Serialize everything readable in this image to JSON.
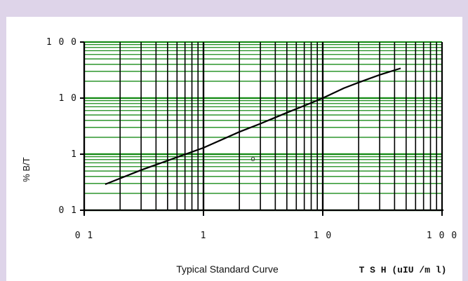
{
  "chart_data": {
    "type": "line",
    "title": "",
    "caption": "Typical Standard Curve",
    "xlabel": "T S H  (uIU /m l)",
    "ylabel": "% B/T",
    "xscale": "log",
    "yscale": "log",
    "xlim": [
      0.1,
      100
    ],
    "ylim": [
      0.1,
      100
    ],
    "xticks": [
      {
        "value": 0.1,
        "label": "0 1"
      },
      {
        "value": 1,
        "label": "1"
      },
      {
        "value": 10,
        "label": "1 0"
      },
      {
        "value": 100,
        "label": "1 0 0"
      }
    ],
    "yticks": [
      {
        "value": 0.1,
        "label": "0 1"
      },
      {
        "value": 1,
        "label": "1"
      },
      {
        "value": 10,
        "label": "1 0"
      },
      {
        "value": 100,
        "label": "1 0 0"
      }
    ],
    "grid": true,
    "colors": {
      "xgrid": "#000000",
      "ygrid": "#1a8c1a",
      "curve": "#000000",
      "frame": "#ded4e9"
    },
    "series": [
      {
        "x": [
          0.15,
          0.3,
          0.6,
          1.0,
          2.0,
          3.0,
          5.0,
          8.0,
          10,
          15,
          20,
          30,
          45
        ],
        "y": [
          0.29,
          0.52,
          0.88,
          1.3,
          2.5,
          3.5,
          5.5,
          8.2,
          10,
          15,
          19,
          26,
          34
        ]
      }
    ],
    "annotations": [
      {
        "text": "o",
        "x": 2.6,
        "y": 0.75
      }
    ]
  }
}
